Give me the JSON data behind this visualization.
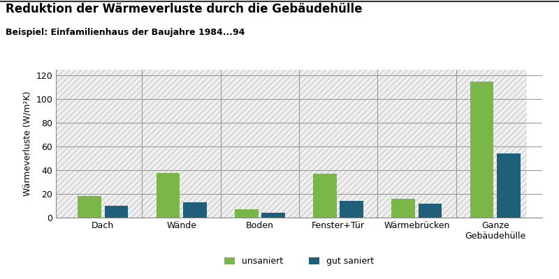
{
  "title": "Reduktion der Wärmeverluste durch die Gebäudehülle",
  "subtitle": "Beispiel: Einfamilienhaus der Baujahre 1984...94",
  "categories": [
    "Dach",
    "Wände",
    "Boden",
    "Fenster+Tür",
    "Wärmebrücken",
    "Ganze\nGebäudehülle"
  ],
  "unsaniert": [
    18,
    38,
    7,
    37,
    16,
    115
  ],
  "gut_saniert": [
    10,
    13,
    4,
    14,
    12,
    54
  ],
  "color_unsaniert": "#7ab648",
  "color_gut_saniert": "#1f5f7a",
  "ylabel": "Wärmeverluste (W/m²K)",
  "ylim": [
    0,
    125
  ],
  "yticks": [
    0,
    20,
    40,
    60,
    80,
    100,
    120
  ],
  "legend_unsaniert": "unsaniert",
  "legend_gut_saniert": "gut saniert",
  "background_color": "#ffffff",
  "plot_bg_color": "#ffffff",
  "hgrid_color": "#999999",
  "vgrid_color": "#999999",
  "hatch_bg": "////",
  "hatch_color": "#cccccc",
  "top_line_color": "#333333",
  "bar_width": 0.3
}
